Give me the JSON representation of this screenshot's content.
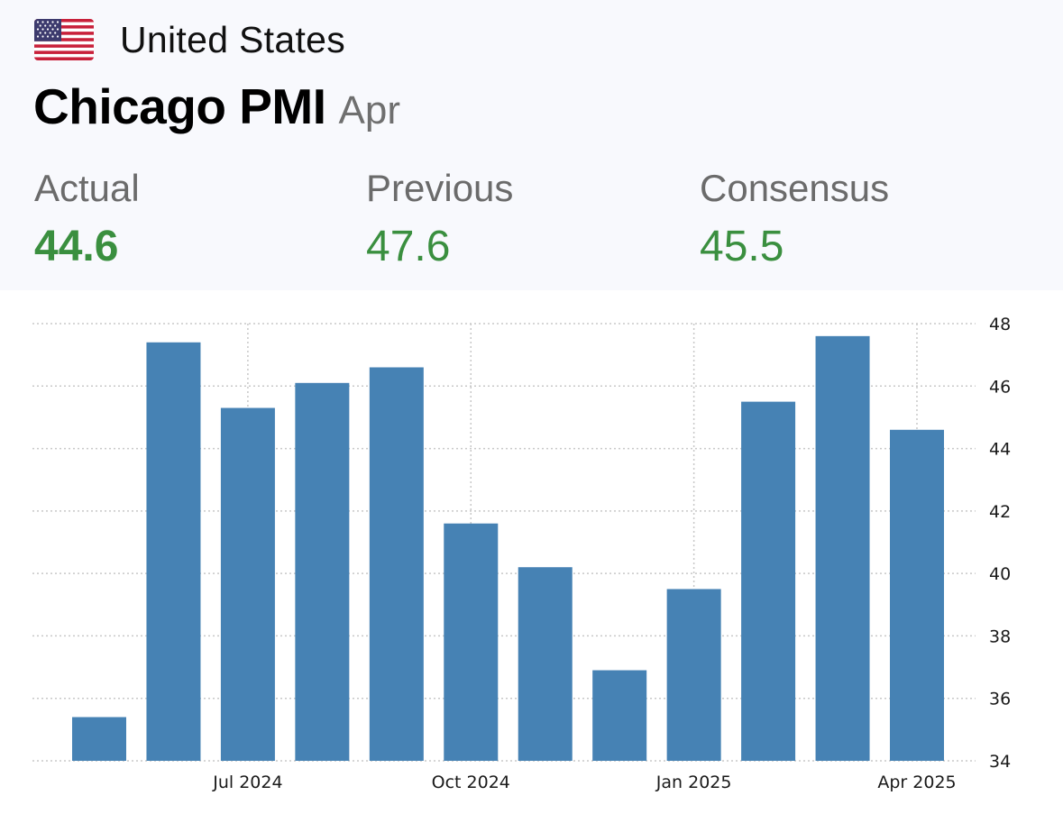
{
  "header": {
    "country": "United States",
    "flag_icon": "us-flag-icon",
    "title": "Chicago PMI",
    "period": "Apr"
  },
  "stats": {
    "actual": {
      "label": "Actual",
      "value": "44.6"
    },
    "previous": {
      "label": "Previous",
      "value": "47.6"
    },
    "consensus": {
      "label": "Consensus",
      "value": "45.5"
    }
  },
  "colors": {
    "value_green": "#3a8f3f",
    "bar": "#4682b4",
    "header_bg": "#f8f9fd",
    "grid": "#c8c8c8"
  },
  "chart_data": {
    "type": "bar",
    "categories": [
      "May 2024",
      "Jun 2024",
      "Jul 2024",
      "Aug 2024",
      "Sep 2024",
      "Oct 2024",
      "Nov 2024",
      "Dec 2024",
      "Jan 2025",
      "Feb 2025",
      "Mar 2025",
      "Apr 2025"
    ],
    "values": [
      35.4,
      47.4,
      45.3,
      46.1,
      46.6,
      41.6,
      40.2,
      36.9,
      39.5,
      45.5,
      47.6,
      44.6
    ],
    "x_tick_labels": [
      {
        "category": "Jul 2024",
        "label": "Jul 2024"
      },
      {
        "category": "Oct 2024",
        "label": "Oct 2024"
      },
      {
        "category": "Jan 2025",
        "label": "Jan 2025"
      },
      {
        "category": "Apr 2025",
        "label": "Apr 2025"
      }
    ],
    "y_ticks": [
      34,
      36,
      38,
      40,
      42,
      44,
      46,
      48
    ],
    "ylim": [
      34,
      48
    ],
    "y_axis_side": "right",
    "grid": true,
    "grid_style": "dotted",
    "title": "",
    "xlabel": "",
    "ylabel": ""
  }
}
